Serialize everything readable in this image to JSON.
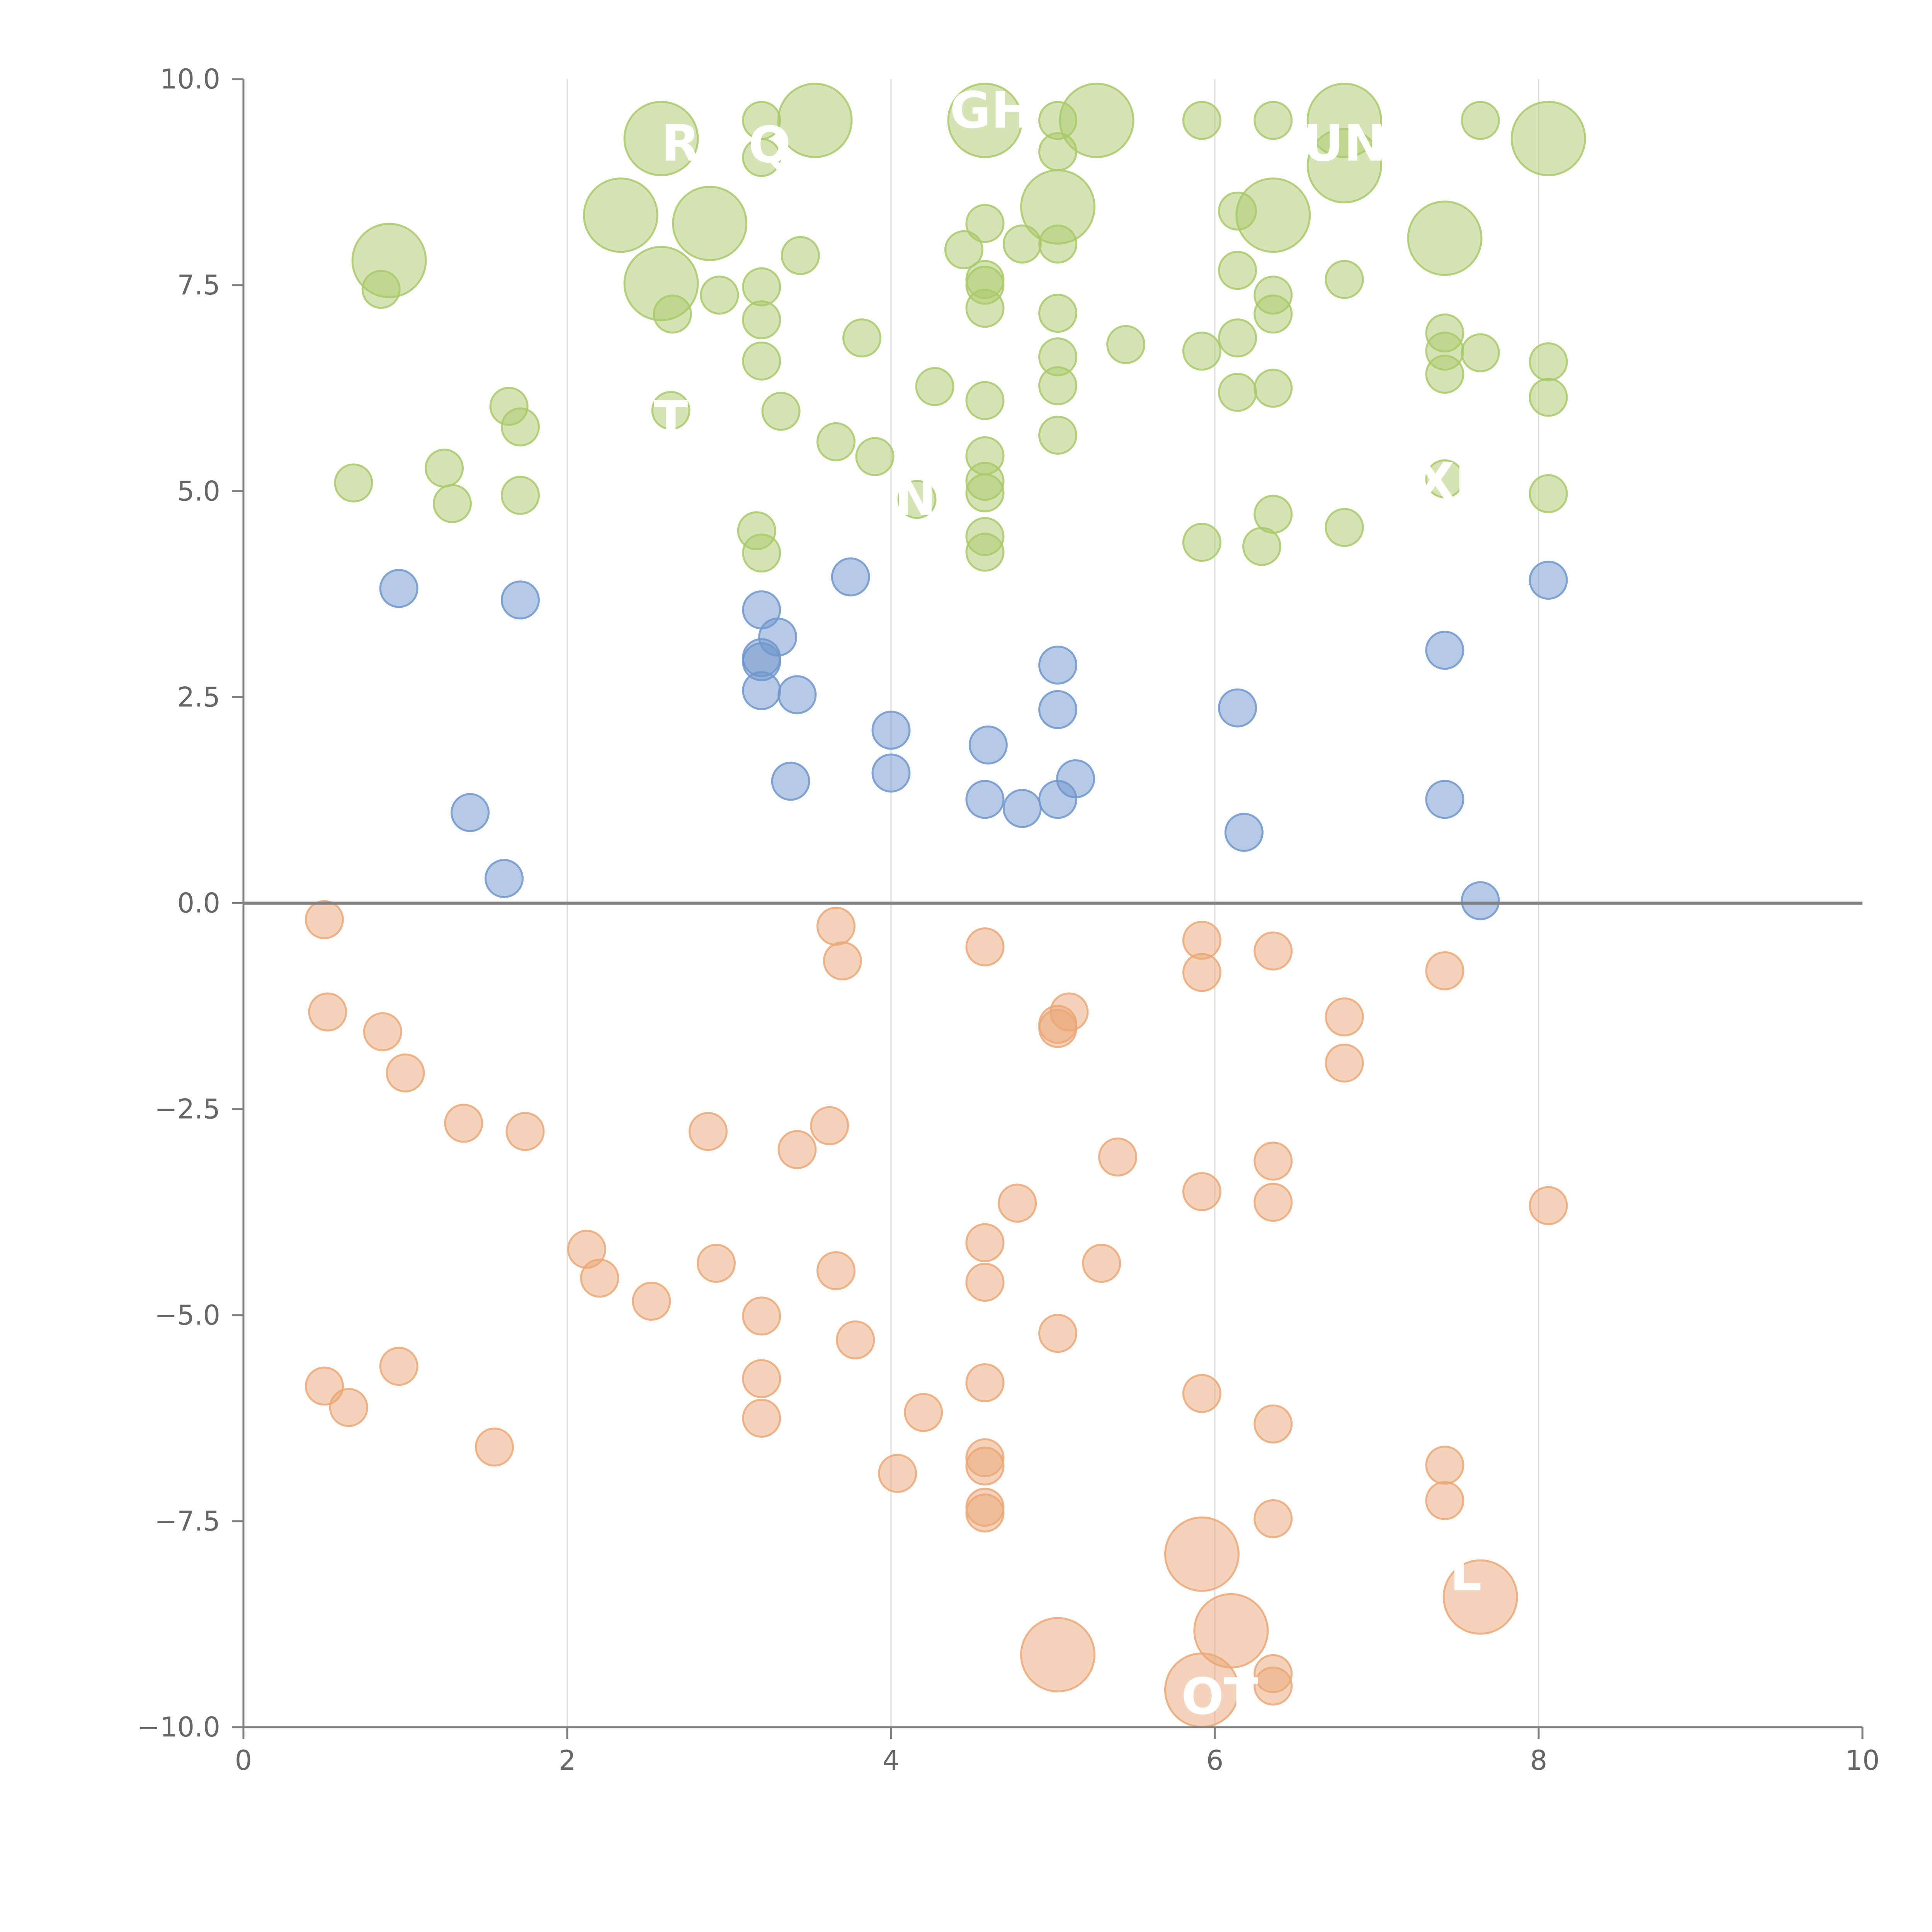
{
  "chart_data": {
    "type": "scatter",
    "title": "",
    "xlabel": "",
    "ylabel": "",
    "xlim": [
      0,
      10
    ],
    "ylim": [
      -10,
      10
    ],
    "x_ticks": [
      "0",
      "2",
      "4",
      "6",
      "8",
      "10"
    ],
    "y_ticks": [
      "10.0",
      "7.5",
      "5.0",
      "2.5",
      "0.0",
      "−2.5",
      "−5.0",
      "−7.5",
      "−10.0"
    ],
    "x_tick_values": [
      0,
      2,
      4,
      6,
      8,
      10
    ],
    "y_tick_values": [
      10,
      7.5,
      5,
      2.5,
      0,
      -2.5,
      -5,
      -7.5,
      -10
    ],
    "grid_x": true,
    "grid_y": false,
    "zero_line": true,
    "series": [
      {
        "name": "green",
        "color": "#a9c96a",
        "points": [
          {
            "x": 0.9,
            "y": 7.8,
            "size": "large"
          },
          {
            "x": 0.85,
            "y": 7.45
          },
          {
            "x": 0.68,
            "y": 5.1
          },
          {
            "x": 1.24,
            "y": 5.28
          },
          {
            "x": 1.29,
            "y": 4.85
          },
          {
            "x": 1.64,
            "y": 6.03
          },
          {
            "x": 1.71,
            "y": 5.78
          },
          {
            "x": 1.71,
            "y": 4.95
          },
          {
            "x": 2.33,
            "y": 8.35,
            "size": "large"
          },
          {
            "x": 2.58,
            "y": 9.28,
            "size": "large"
          },
          {
            "x": 2.58,
            "y": 7.52,
            "size": "large"
          },
          {
            "x": 2.65,
            "y": 7.15
          },
          {
            "x": 2.64,
            "y": 5.98
          },
          {
            "x": 2.88,
            "y": 8.25,
            "size": "large"
          },
          {
            "x": 2.94,
            "y": 7.38
          },
          {
            "x": 3.2,
            "y": 9.5
          },
          {
            "x": 3.2,
            "y": 9.05
          },
          {
            "x": 3.2,
            "y": 7.48
          },
          {
            "x": 3.2,
            "y": 7.08
          },
          {
            "x": 3.2,
            "y": 6.58
          },
          {
            "x": 3.17,
            "y": 4.52
          },
          {
            "x": 3.2,
            "y": 4.25
          },
          {
            "x": 3.32,
            "y": 5.97
          },
          {
            "x": 3.44,
            "y": 7.86
          },
          {
            "x": 3.53,
            "y": 9.5,
            "size": "large"
          },
          {
            "x": 3.66,
            "y": 5.6
          },
          {
            "x": 3.82,
            "y": 6.86
          },
          {
            "x": 3.9,
            "y": 5.42
          },
          {
            "x": 4.16,
            "y": 4.9
          },
          {
            "x": 4.27,
            "y": 6.27
          },
          {
            "x": 4.45,
            "y": 7.93
          },
          {
            "x": 4.58,
            "y": 9.5,
            "size": "large"
          },
          {
            "x": 4.58,
            "y": 8.25
          },
          {
            "x": 4.58,
            "y": 7.57
          },
          {
            "x": 4.58,
            "y": 7.5
          },
          {
            "x": 4.58,
            "y": 7.22
          },
          {
            "x": 4.58,
            "y": 6.1
          },
          {
            "x": 4.58,
            "y": 5.43
          },
          {
            "x": 4.58,
            "y": 5.12
          },
          {
            "x": 4.58,
            "y": 4.98
          },
          {
            "x": 4.58,
            "y": 4.45
          },
          {
            "x": 4.58,
            "y": 4.26
          },
          {
            "x": 4.81,
            "y": 8.0
          },
          {
            "x": 5.03,
            "y": 9.5
          },
          {
            "x": 5.03,
            "y": 9.12
          },
          {
            "x": 5.03,
            "y": 8.45,
            "size": "large"
          },
          {
            "x": 5.03,
            "y": 8.0
          },
          {
            "x": 5.03,
            "y": 7.16
          },
          {
            "x": 5.03,
            "y": 6.63
          },
          {
            "x": 5.03,
            "y": 6.28
          },
          {
            "x": 5.03,
            "y": 5.68
          },
          {
            "x": 5.27,
            "y": 9.5,
            "size": "large"
          },
          {
            "x": 5.45,
            "y": 6.78
          },
          {
            "x": 5.92,
            "y": 9.5
          },
          {
            "x": 5.92,
            "y": 6.7
          },
          {
            "x": 5.92,
            "y": 4.38
          },
          {
            "x": 6.14,
            "y": 8.4
          },
          {
            "x": 6.14,
            "y": 7.68
          },
          {
            "x": 6.14,
            "y": 6.86
          },
          {
            "x": 6.14,
            "y": 6.2
          },
          {
            "x": 6.36,
            "y": 9.5
          },
          {
            "x": 6.36,
            "y": 8.35,
            "size": "large"
          },
          {
            "x": 6.36,
            "y": 7.38
          },
          {
            "x": 6.36,
            "y": 7.15
          },
          {
            "x": 6.36,
            "y": 6.25
          },
          {
            "x": 6.36,
            "y": 4.72
          },
          {
            "x": 6.29,
            "y": 4.33
          },
          {
            "x": 6.8,
            "y": 9.5,
            "size": "large"
          },
          {
            "x": 6.8,
            "y": 8.95,
            "size": "large"
          },
          {
            "x": 6.8,
            "y": 7.57
          },
          {
            "x": 6.8,
            "y": 4.56
          },
          {
            "x": 7.42,
            "y": 8.07,
            "size": "large"
          },
          {
            "x": 7.42,
            "y": 6.92
          },
          {
            "x": 7.42,
            "y": 6.7
          },
          {
            "x": 7.42,
            "y": 6.42
          },
          {
            "x": 7.42,
            "y": 5.15
          },
          {
            "x": 7.64,
            "y": 9.5
          },
          {
            "x": 7.64,
            "y": 6.68
          },
          {
            "x": 8.06,
            "y": 9.28,
            "size": "large"
          },
          {
            "x": 8.06,
            "y": 6.57
          },
          {
            "x": 8.06,
            "y": 6.14
          },
          {
            "x": 8.06,
            "y": 4.97
          }
        ]
      },
      {
        "name": "blue",
        "color": "#7096cc",
        "points": [
          {
            "x": 0.96,
            "y": 3.82
          },
          {
            "x": 1.71,
            "y": 3.68
          },
          {
            "x": 1.4,
            "y": 1.1
          },
          {
            "x": 1.61,
            "y": 0.3
          },
          {
            "x": 3.2,
            "y": 3.56
          },
          {
            "x": 3.3,
            "y": 3.23
          },
          {
            "x": 3.2,
            "y": 2.98
          },
          {
            "x": 3.2,
            "y": 2.93
          },
          {
            "x": 3.2,
            "y": 2.58
          },
          {
            "x": 3.42,
            "y": 2.53
          },
          {
            "x": 3.38,
            "y": 1.48
          },
          {
            "x": 3.75,
            "y": 3.96
          },
          {
            "x": 4.0,
            "y": 2.1
          },
          {
            "x": 4.0,
            "y": 1.58
          },
          {
            "x": 4.6,
            "y": 1.92
          },
          {
            "x": 4.58,
            "y": 1.26
          },
          {
            "x": 4.81,
            "y": 1.15
          },
          {
            "x": 5.03,
            "y": 2.89
          },
          {
            "x": 5.03,
            "y": 2.35
          },
          {
            "x": 5.03,
            "y": 1.26
          },
          {
            "x": 5.14,
            "y": 1.51
          },
          {
            "x": 6.14,
            "y": 2.37
          },
          {
            "x": 6.18,
            "y": 0.86
          },
          {
            "x": 7.42,
            "y": 3.07
          },
          {
            "x": 7.42,
            "y": 1.26
          },
          {
            "x": 7.64,
            "y": 0.03
          },
          {
            "x": 8.06,
            "y": 3.92
          }
        ]
      },
      {
        "name": "orange",
        "color": "#eba777",
        "points": [
          {
            "x": 0.5,
            "y": -0.2
          },
          {
            "x": 0.52,
            "y": -1.32
          },
          {
            "x": 0.86,
            "y": -1.56
          },
          {
            "x": 1.0,
            "y": -2.06
          },
          {
            "x": 1.36,
            "y": -2.67
          },
          {
            "x": 1.74,
            "y": -2.77
          },
          {
            "x": 0.5,
            "y": -5.86
          },
          {
            "x": 0.65,
            "y": -6.12
          },
          {
            "x": 0.96,
            "y": -5.62
          },
          {
            "x": 1.55,
            "y": -6.6
          },
          {
            "x": 2.12,
            "y": -4.2
          },
          {
            "x": 2.2,
            "y": -4.55
          },
          {
            "x": 2.52,
            "y": -4.83
          },
          {
            "x": 2.87,
            "y": -2.77
          },
          {
            "x": 2.92,
            "y": -4.37
          },
          {
            "x": 3.2,
            "y": -5.01
          },
          {
            "x": 3.2,
            "y": -5.77
          },
          {
            "x": 3.2,
            "y": -6.25
          },
          {
            "x": 3.42,
            "y": -2.99
          },
          {
            "x": 3.62,
            "y": -2.7
          },
          {
            "x": 3.66,
            "y": -0.28
          },
          {
            "x": 3.7,
            "y": -0.7
          },
          {
            "x": 3.66,
            "y": -4.46
          },
          {
            "x": 3.78,
            "y": -5.3
          },
          {
            "x": 4.04,
            "y": -6.92
          },
          {
            "x": 4.2,
            "y": -6.18
          },
          {
            "x": 4.58,
            "y": -0.53
          },
          {
            "x": 4.58,
            "y": -4.12
          },
          {
            "x": 4.58,
            "y": -4.6
          },
          {
            "x": 4.58,
            "y": -5.82
          },
          {
            "x": 4.58,
            "y": -6.73
          },
          {
            "x": 4.58,
            "y": -6.83
          },
          {
            "x": 4.58,
            "y": -7.33
          },
          {
            "x": 4.58,
            "y": -7.4
          },
          {
            "x": 4.78,
            "y": -3.64
          },
          {
            "x": 5.03,
            "y": -1.47
          },
          {
            "x": 5.03,
            "y": -1.52
          },
          {
            "x": 5.03,
            "y": -5.22
          },
          {
            "x": 5.03,
            "y": -9.12,
            "size": "large"
          },
          {
            "x": 5.1,
            "y": -1.32
          },
          {
            "x": 5.3,
            "y": -4.37
          },
          {
            "x": 5.4,
            "y": -3.08
          },
          {
            "x": 5.92,
            "y": -0.45
          },
          {
            "x": 5.92,
            "y": -0.84
          },
          {
            "x": 5.92,
            "y": -3.5
          },
          {
            "x": 5.92,
            "y": -5.95
          },
          {
            "x": 5.92,
            "y": -7.9,
            "size": "large"
          },
          {
            "x": 5.92,
            "y": -9.55,
            "size": "large"
          },
          {
            "x": 6.1,
            "y": -8.83,
            "size": "large"
          },
          {
            "x": 6.36,
            "y": -0.58
          },
          {
            "x": 6.36,
            "y": -3.13
          },
          {
            "x": 6.36,
            "y": -3.63
          },
          {
            "x": 6.36,
            "y": -6.32
          },
          {
            "x": 6.36,
            "y": -7.47
          },
          {
            "x": 6.36,
            "y": -9.35
          },
          {
            "x": 6.36,
            "y": -9.5
          },
          {
            "x": 6.8,
            "y": -1.38
          },
          {
            "x": 6.8,
            "y": -1.94
          },
          {
            "x": 7.42,
            "y": -0.82
          },
          {
            "x": 7.42,
            "y": -6.82
          },
          {
            "x": 7.42,
            "y": -7.25
          },
          {
            "x": 7.64,
            "y": -8.42,
            "size": "large"
          },
          {
            "x": 8.06,
            "y": -3.67
          }
        ]
      }
    ],
    "annotations": [
      {
        "text": "R",
        "x": 2.7,
        "y": 9.2
      },
      {
        "text": "Q",
        "x": 3.25,
        "y": 9.18
      },
      {
        "text": "GH",
        "x": 4.62,
        "y": 9.6
      },
      {
        "text": "UN",
        "x": 6.8,
        "y": 9.2
      },
      {
        "text": "T",
        "x": 2.64,
        "y": 5.85
      },
      {
        "text": "N",
        "x": 4.15,
        "y": 4.9
      },
      {
        "text": "XI",
        "x": 7.42,
        "y": 5.1
      },
      {
        "text": "L",
        "x": 7.55,
        "y": -8.15
      },
      {
        "text": "OT",
        "x": 6.03,
        "y": -9.65
      }
    ]
  }
}
